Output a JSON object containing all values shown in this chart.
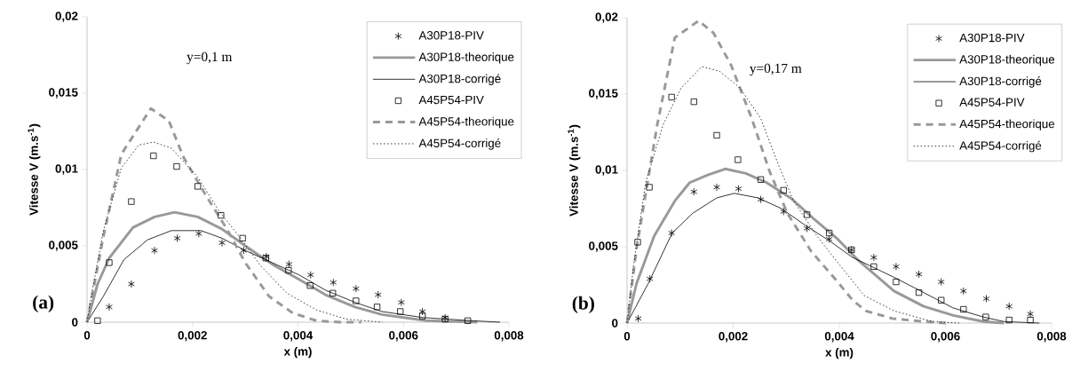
{
  "chart_data": [
    {
      "type": "line",
      "title": "(a)",
      "xlabel": "x (m)",
      "ylabel": "Vitesse V (m.s$^{-1}$)",
      "annotations": [
        "y=0,1 m"
      ],
      "xlim": [
        0,
        0.008
      ],
      "ylim": [
        0,
        0.02
      ],
      "xticks": [
        {
          "value": 0,
          "label": "0"
        },
        {
          "value": 0.002,
          "label": "0,002"
        },
        {
          "value": 0.004,
          "label": "0,004"
        },
        {
          "value": 0.006,
          "label": "0,006"
        },
        {
          "value": 0.008,
          "label": "0,008"
        }
      ],
      "yticks": [
        {
          "value": 0,
          "label": "0"
        },
        {
          "value": 0.005,
          "label": "0,005"
        },
        {
          "value": 0.01,
          "label": "0,01"
        },
        {
          "value": 0.015,
          "label": "0,015"
        },
        {
          "value": 0.02,
          "label": "0,02"
        }
      ],
      "legend": "top right",
      "series": [
        {
          "name": "A30P18-PIV",
          "type": "scatter",
          "marker": "cross",
          "color": "#000000",
          "x": [
            0.00042,
            0.00084,
            0.00128,
            0.00171,
            0.00212,
            0.00256,
            0.00297,
            0.0034,
            0.00383,
            0.00424,
            0.00467,
            0.0051,
            0.00552,
            0.00596,
            0.00636,
            0.00679
          ],
          "values": [
            0.001,
            0.0025,
            0.0047,
            0.0055,
            0.0058,
            0.0052,
            0.0047,
            0.0043,
            0.0038,
            0.0031,
            0.0026,
            0.0022,
            0.0018,
            0.0013,
            0.0007,
            0.0003
          ]
        },
        {
          "name": "A30P18-theorique",
          "line_style": "solid",
          "color": "#999999",
          "x": [
            0,
            0.0002,
            0.00042,
            0.00087,
            0.00128,
            0.00166,
            0.0021,
            0.00256,
            0.003,
            0.00351,
            0.00402,
            0.00452,
            0.00508,
            0.00559,
            0.00643,
            0.0074
          ],
          "values": [
            0,
            0.0025,
            0.0042,
            0.0062,
            0.0069,
            0.0072,
            0.0069,
            0.0061,
            0.005,
            0.0038,
            0.0028,
            0.0018,
            0.001,
            0.0005,
            0.0001,
            0
          ]
        },
        {
          "name": "A30P18-corrigé",
          "line_style": "solid",
          "color": "#000000",
          "x": [
            0,
            0.00031,
            0.0007,
            0.00115,
            0.0016,
            0.00216,
            0.00256,
            0.003,
            0.00351,
            0.00402,
            0.00452,
            0.00508,
            0.00559,
            0.00638,
            0.00728,
            0.00783
          ],
          "values": [
            0,
            0.0017,
            0.0041,
            0.0054,
            0.006,
            0.006,
            0.0055,
            0.0047,
            0.0039,
            0.0031,
            0.0021,
            0.0013,
            0.0007,
            0.0003,
            0.0001,
            0
          ]
        },
        {
          "name": "A45P54-PIV",
          "type": "scatter",
          "marker": "square",
          "color": "#000000",
          "x": [
            0.0002,
            0.00042,
            0.00084,
            0.00126,
            0.0017,
            0.0021,
            0.00254,
            0.00295,
            0.00339,
            0.00382,
            0.00423,
            0.00466,
            0.0051,
            0.0055,
            0.00594,
            0.00636,
            0.00679,
            0.00722
          ],
          "values": [
            0.0001,
            0.0039,
            0.0079,
            0.0109,
            0.0102,
            0.0089,
            0.007,
            0.0055,
            0.0042,
            0.0034,
            0.0024,
            0.0019,
            0.0014,
            0.001,
            0.0007,
            0.0004,
            0.0002,
            0.0001
          ]
        },
        {
          "name": "A45P54-theorique",
          "line_style": "dashed",
          "color": "#999999",
          "x": [
            0,
            0.00031,
            0.00065,
            0.00121,
            0.00155,
            0.00183,
            0.00222,
            0.00267,
            0.003,
            0.00345,
            0.0039,
            0.00435,
            0.0048,
            0.0052
          ],
          "values": [
            0,
            0.0056,
            0.011,
            0.014,
            0.0132,
            0.0108,
            0.0085,
            0.006,
            0.0039,
            0.0017,
            0.0006,
            0.0001,
            0,
            0
          ]
        },
        {
          "name": "A45P54-corrigé",
          "line_style": "dotted",
          "color": "#000000",
          "x": [
            0,
            8e-05,
            0.00031,
            0.00065,
            0.00098,
            0.00126,
            0.0016,
            0.0021,
            0.0025,
            0.00289,
            0.00329,
            0.00379,
            0.00435,
            0.00492,
            0.0056
          ],
          "values": [
            0,
            0.0017,
            0.006,
            0.0101,
            0.0116,
            0.0118,
            0.0114,
            0.0095,
            0.0073,
            0.0056,
            0.0037,
            0.0019,
            0.0008,
            0.0002,
            0
          ]
        }
      ]
    },
    {
      "type": "line",
      "title": "(b)",
      "xlabel": "x (m)",
      "ylabel": "Vitesse V (m.s$^{-1}$)",
      "annotations": [
        "y=0,17 m"
      ],
      "xlim": [
        0,
        0.008
      ],
      "ylim": [
        0,
        0.02
      ],
      "xticks": [
        {
          "value": 0,
          "label": "0"
        },
        {
          "value": 0.002,
          "label": "0,002"
        },
        {
          "value": 0.004,
          "label": "0,004"
        },
        {
          "value": 0.006,
          "label": "0,006"
        },
        {
          "value": 0.008,
          "label": "0,008"
        }
      ],
      "yticks": [
        {
          "value": 0,
          "label": "0"
        },
        {
          "value": 0.005,
          "label": "0,005"
        },
        {
          "value": 0.01,
          "label": "0,01"
        },
        {
          "value": 0.015,
          "label": "0,015"
        },
        {
          "value": 0.02,
          "label": "0,02"
        }
      ],
      "legend": "top right",
      "series": [
        {
          "name": "A30P18-PIV",
          "type": "scatter",
          "marker": "cross",
          "color": "#000000",
          "x": [
            0.00021,
            0.00043,
            0.00084,
            0.00126,
            0.00169,
            0.0021,
            0.00252,
            0.00295,
            0.00339,
            0.00381,
            0.00423,
            0.00465,
            0.00507,
            0.0055,
            0.00592,
            0.00634,
            0.00677,
            0.0072,
            0.0076
          ],
          "values": [
            0.0003,
            0.0029,
            0.0059,
            0.0086,
            0.0089,
            0.0088,
            0.0081,
            0.0073,
            0.0062,
            0.0055,
            0.0048,
            0.0043,
            0.0037,
            0.0032,
            0.0027,
            0.0021,
            0.0016,
            0.0011,
            0.0006
          ]
        },
        {
          "name": "A30P18-theorique",
          "line_style": "solid",
          "color": "#999999",
          "x": [
            0,
            0.00018,
            0.00051,
            0.0009,
            0.00118,
            0.00152,
            0.00185,
            0.00224,
            0.00263,
            0.00308,
            0.00353,
            0.00397,
            0.00436,
            0.00503,
            0.00559,
            0.00615,
            0.00671,
            0.0071
          ],
          "values": [
            0,
            0.0026,
            0.0057,
            0.008,
            0.0092,
            0.0097,
            0.0101,
            0.0098,
            0.0092,
            0.0082,
            0.0068,
            0.0055,
            0.0041,
            0.0021,
            0.0011,
            0.0005,
            0.0001,
            0
          ]
        },
        {
          "name": "A30P18-corrigé",
          "line_style": "solid",
          "color": "#000000",
          "x": [
            0,
            0.0004,
            0.00085,
            0.00124,
            0.00169,
            0.00202,
            0.00247,
            0.00291,
            0.00336,
            0.00381,
            0.00425,
            0.00503,
            0.00559,
            0.00614,
            0.00671,
            0.0071,
            0.00777
          ],
          "values": [
            0,
            0.0026,
            0.0059,
            0.0072,
            0.0082,
            0.0085,
            0.0082,
            0.0075,
            0.0064,
            0.0054,
            0.0043,
            0.003,
            0.002,
            0.001,
            0.0004,
            0.0001,
            0
          ]
        },
        {
          "name": "A45P54-PIV",
          "type": "scatter",
          "marker": "square",
          "color": "#000000",
          "x": [
            0.0002,
            0.00042,
            0.00084,
            0.00126,
            0.00169,
            0.00209,
            0.00252,
            0.00295,
            0.00339,
            0.00381,
            0.00423,
            0.00465,
            0.00507,
            0.0055,
            0.00592,
            0.00634,
            0.00676,
            0.0072,
            0.0076
          ],
          "values": [
            0.0053,
            0.0089,
            0.0148,
            0.0145,
            0.0123,
            0.0107,
            0.0094,
            0.0087,
            0.0071,
            0.0059,
            0.0048,
            0.0037,
            0.0027,
            0.002,
            0.0015,
            0.0009,
            0.0004,
            0.0002,
            0.0002
          ]
        },
        {
          "name": "A45P54-theorique",
          "line_style": "dashed",
          "color": "#999999",
          "x": [
            0,
            0.00018,
            0.0004,
            0.00057,
            0.0009,
            0.00135,
            0.00163,
            0.00196,
            0.00235,
            0.00269,
            0.00302,
            0.00347,
            0.00397,
            0.00425,
            0.0045,
            0.005,
            0.0056,
            0.006
          ],
          "values": [
            0,
            0.0049,
            0.0095,
            0.013,
            0.0187,
            0.0198,
            0.019,
            0.0169,
            0.0134,
            0.0099,
            0.0072,
            0.0047,
            0.0027,
            0.0015,
            0.0008,
            0.0003,
            0.0001,
            0
          ]
        },
        {
          "name": "A45P54-corrigé",
          "line_style": "dotted",
          "color": "#000000",
          "x": [
            0,
            0.00012,
            0.00035,
            0.00068,
            0.00102,
            0.00141,
            0.00174,
            0.00213,
            0.00252,
            0.00286,
            0.00314,
            0.00358,
            0.00403,
            0.00447,
            0.00503,
            0.00576,
            0.00626
          ],
          "values": [
            0,
            0.0037,
            0.0092,
            0.013,
            0.0154,
            0.0168,
            0.0165,
            0.0154,
            0.0134,
            0.0103,
            0.008,
            0.0057,
            0.0037,
            0.0018,
            0.0008,
            0.0001,
            0
          ]
        }
      ]
    }
  ]
}
